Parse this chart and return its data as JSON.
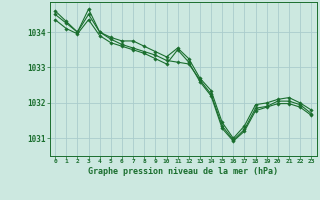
{
  "title": "Graphe pression niveau de la mer (hPa)",
  "bg_color": "#cce8e0",
  "grid_color": "#aacccc",
  "line_color": "#1a6e2e",
  "xlim": [
    -0.5,
    23.5
  ],
  "ylim": [
    1030.5,
    1034.85
  ],
  "yticks": [
    1031,
    1032,
    1033,
    1034
  ],
  "xticks": [
    0,
    1,
    2,
    3,
    4,
    5,
    6,
    7,
    8,
    9,
    10,
    11,
    12,
    13,
    14,
    15,
    16,
    17,
    18,
    19,
    20,
    21,
    22,
    23
  ],
  "series": [
    [
      1034.6,
      1034.3,
      1034.0,
      1034.65,
      1034.0,
      1033.85,
      1033.75,
      1033.75,
      1033.6,
      1033.45,
      1033.3,
      1033.55,
      1033.25,
      1032.7,
      1032.35,
      1031.45,
      1031.0,
      1031.35,
      1031.95,
      1032.0,
      1032.1,
      1032.15,
      1032.0,
      1031.8
    ],
    [
      1034.5,
      1034.25,
      1034.0,
      1034.5,
      1034.0,
      1033.8,
      1033.65,
      1033.55,
      1033.45,
      1033.35,
      1033.2,
      1033.15,
      1033.1,
      1032.65,
      1032.25,
      1031.35,
      1030.95,
      1031.25,
      1031.85,
      1031.9,
      1032.05,
      1032.05,
      1031.95,
      1031.7
    ],
    [
      1034.35,
      1034.1,
      1033.95,
      1034.35,
      1033.9,
      1033.7,
      1033.6,
      1033.5,
      1033.4,
      1033.25,
      1033.1,
      1033.5,
      1033.15,
      1032.6,
      1032.2,
      1031.28,
      1030.92,
      1031.2,
      1031.78,
      1031.88,
      1031.98,
      1031.98,
      1031.88,
      1031.65
    ]
  ]
}
